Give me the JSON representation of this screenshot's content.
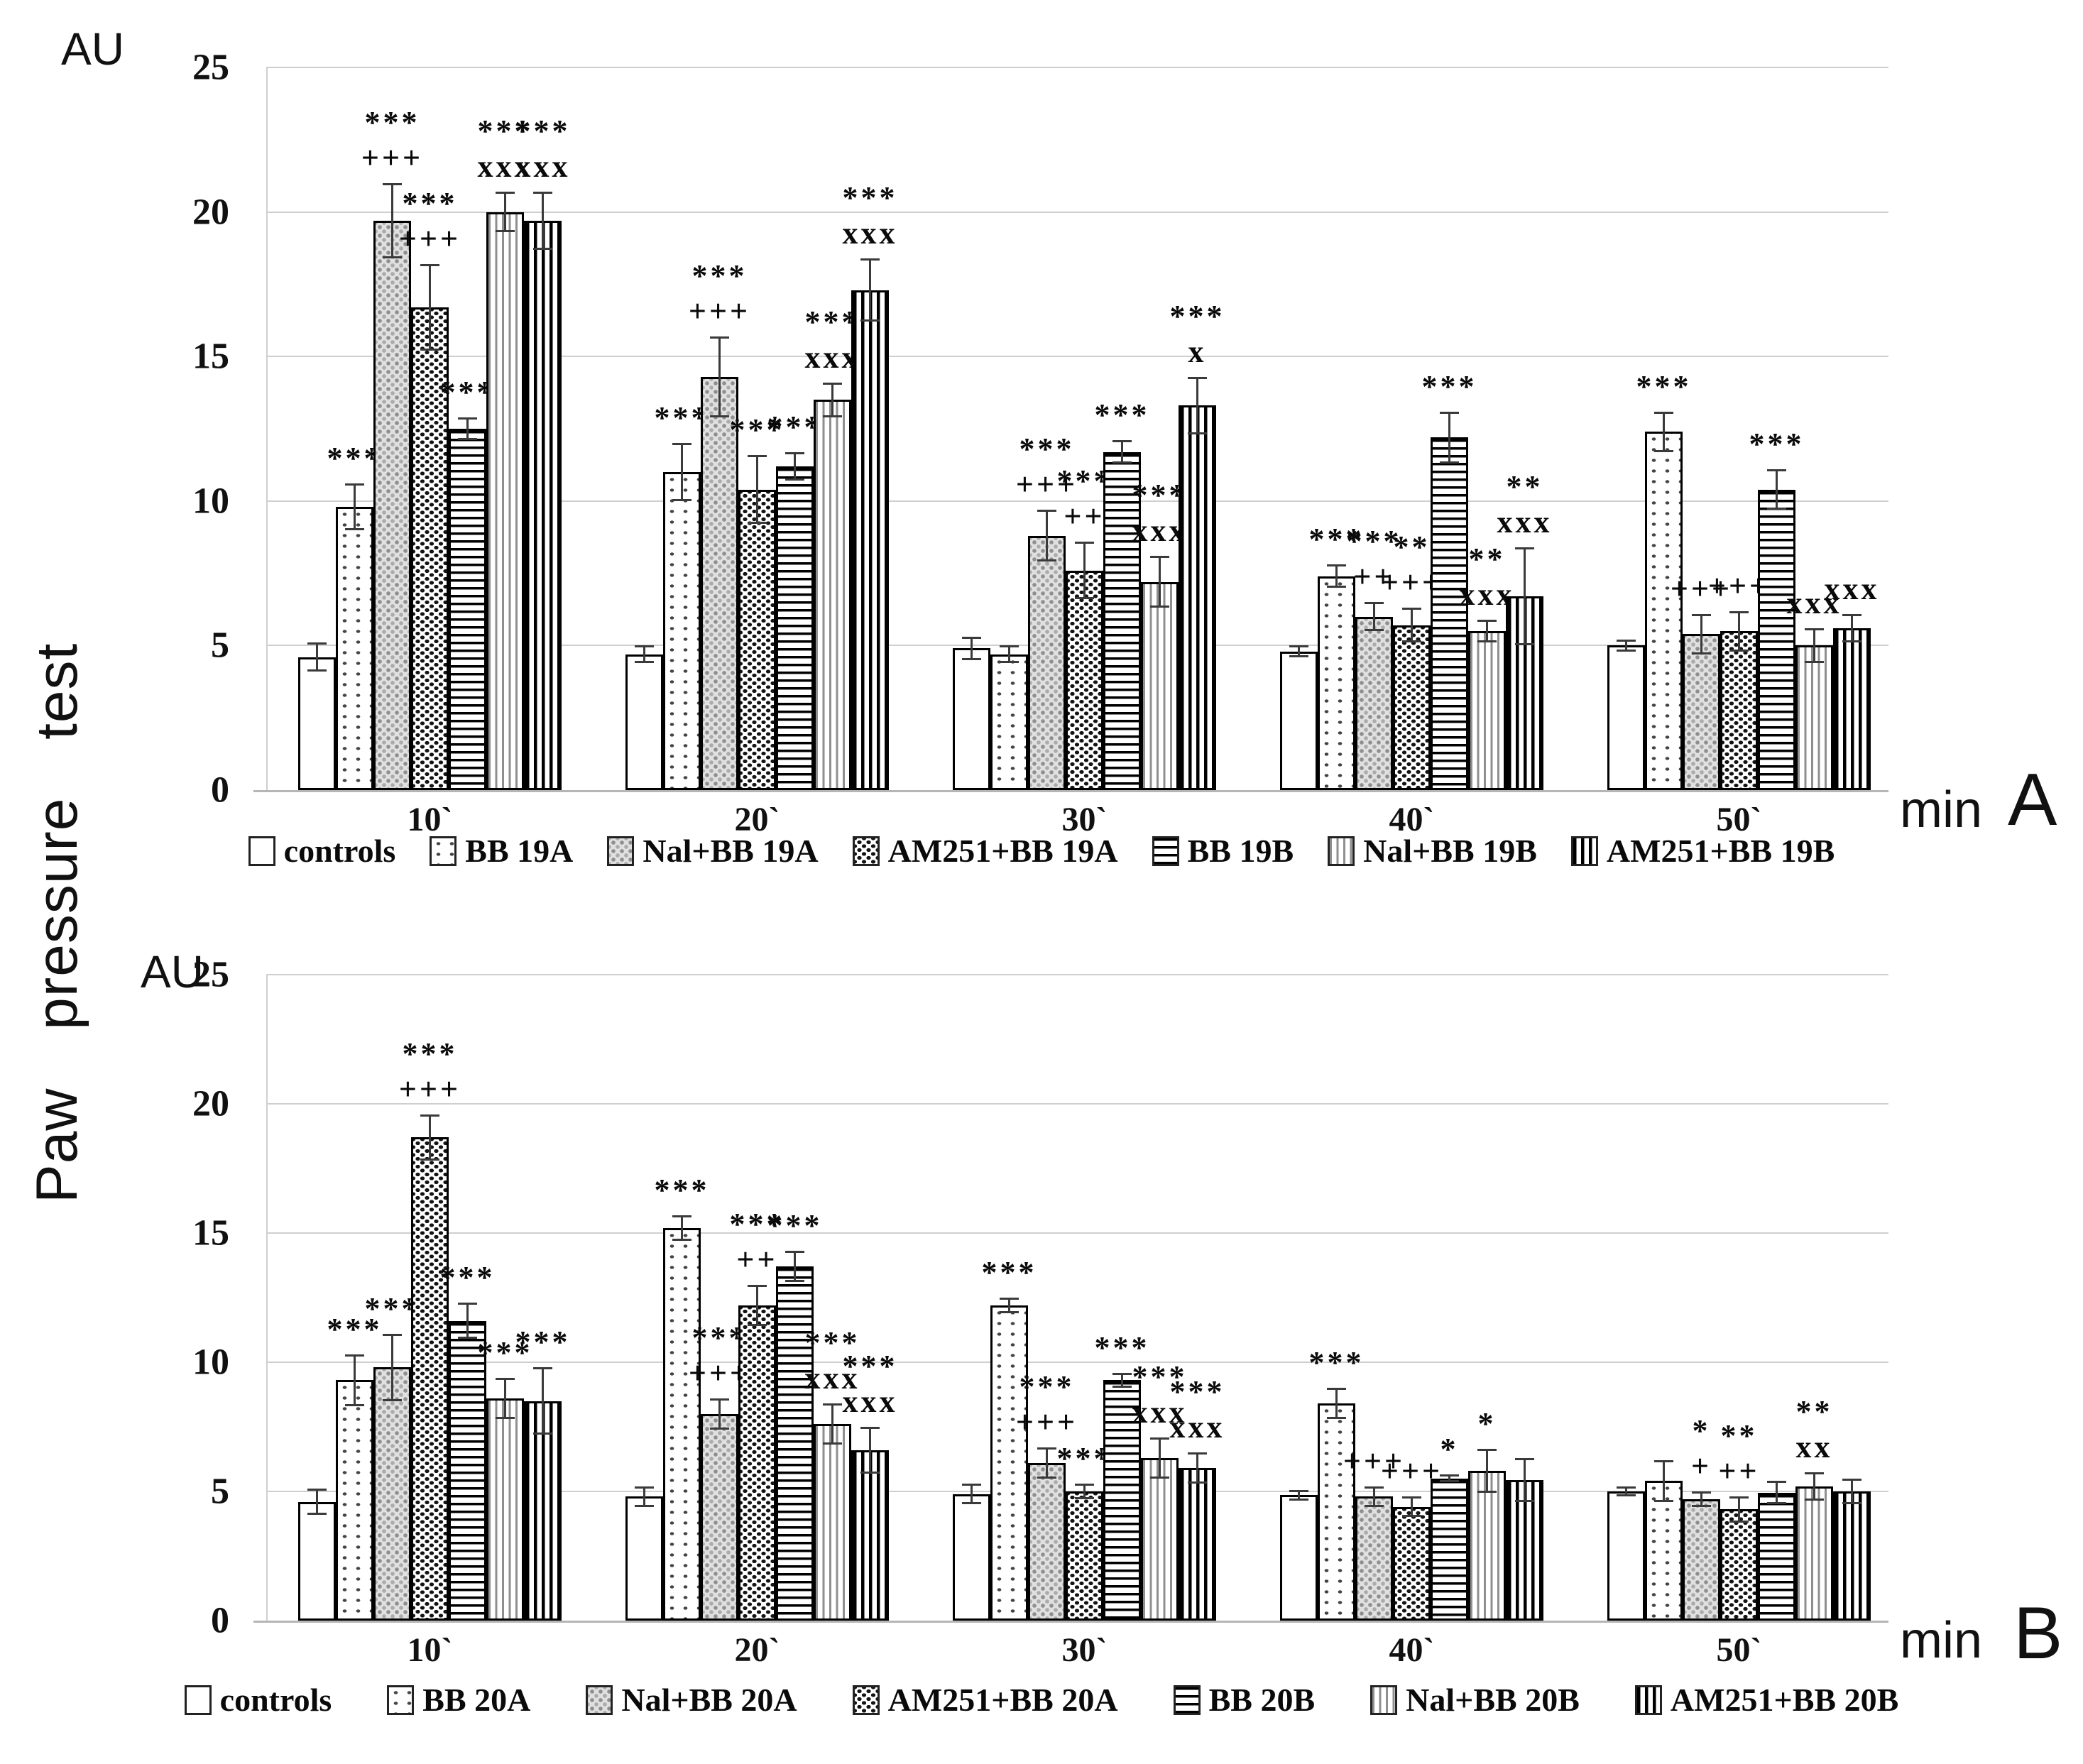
{
  "figure": {
    "vertical_axis_title": "Paw pressure test",
    "y_axis_unit": "AU",
    "x_axis_unit": "min"
  },
  "colors": {
    "ink": "#000000",
    "grid": "#cfcfcf",
    "axis_line": "#b5b5b5",
    "error_bar": "#3a3a3a",
    "background": "#ffffff"
  },
  "chart_data": [
    {
      "type": "bar",
      "panel_label": "A",
      "y_axis_unit": "AU",
      "x_axis_unit": "min",
      "ylim": [
        0,
        25
      ],
      "yticks": [
        25,
        20,
        15,
        10,
        5,
        0
      ],
      "grid": "horizontal",
      "legend_position": "bottom",
      "categories": [
        "10`",
        "20`",
        "30`",
        "40`",
        "50`"
      ],
      "series": [
        {
          "name": "controls",
          "pattern": "plain",
          "values": [
            4.6,
            4.7,
            4.9,
            4.8,
            5.0
          ],
          "errors": [
            0.5,
            0.3,
            0.4,
            0.2,
            0.2
          ],
          "annotations": [
            [],
            [],
            [],
            [],
            []
          ]
        },
        {
          "name": "BB 19A",
          "pattern": "dots",
          "values": [
            9.8,
            11.0,
            4.7,
            7.4,
            12.4
          ],
          "errors": [
            0.8,
            1.0,
            0.3,
            0.4,
            0.7
          ],
          "annotations": [
            [
              "***"
            ],
            [
              "***"
            ],
            [],
            [
              "***"
            ],
            [
              "***"
            ]
          ]
        },
        {
          "name": "Nal+BB 19A",
          "pattern": "gray-dots",
          "values": [
            19.7,
            14.3,
            8.8,
            6.0,
            5.4
          ],
          "errors": [
            1.3,
            1.4,
            0.9,
            0.5,
            0.7
          ],
          "annotations": [
            [
              "***",
              "+++"
            ],
            [
              "***",
              "+++"
            ],
            [
              "***",
              "+++"
            ],
            [
              "***",
              "++"
            ],
            [
              "+++"
            ]
          ]
        },
        {
          "name": "AM251+BB 19A",
          "pattern": "speckle",
          "values": [
            16.7,
            10.4,
            7.6,
            5.7,
            5.5
          ],
          "errors": [
            1.5,
            1.2,
            1.0,
            0.6,
            0.7
          ],
          "annotations": [
            [
              "***",
              "+++"
            ],
            [
              "***"
            ],
            [
              "***",
              "++"
            ],
            [
              "**",
              "+++"
            ],
            [
              "+++"
            ]
          ]
        },
        {
          "name": "BB 19B",
          "pattern": "hlines",
          "values": [
            12.5,
            11.2,
            11.7,
            12.2,
            10.4
          ],
          "errors": [
            0.4,
            0.5,
            0.4,
            0.9,
            0.7
          ],
          "annotations": [
            [
              "***"
            ],
            [
              "***"
            ],
            [
              "***"
            ],
            [
              "***"
            ],
            [
              "***"
            ]
          ]
        },
        {
          "name": "Nal+BB 19B",
          "pattern": "vlines-gray",
          "values": [
            20.0,
            13.5,
            7.2,
            5.5,
            5.0
          ],
          "errors": [
            0.7,
            0.6,
            0.9,
            0.4,
            0.6
          ],
          "annotations": [
            [
              "***",
              "xxx"
            ],
            [
              "***",
              "xxx"
            ],
            [
              "***",
              "xxx"
            ],
            [
              "**",
              "xxx"
            ],
            [
              "xxx"
            ]
          ]
        },
        {
          "name": "AM251+BB 19B",
          "pattern": "vlines-black",
          "values": [
            19.7,
            17.3,
            13.3,
            6.7,
            5.6
          ],
          "errors": [
            1.0,
            1.1,
            1.0,
            1.7,
            0.5
          ],
          "annotations": [
            [
              "***",
              "xxx"
            ],
            [
              "***",
              "xxx"
            ],
            [
              "***",
              "x"
            ],
            [
              "**",
              "xxx"
            ],
            [
              "xxx"
            ]
          ]
        }
      ]
    },
    {
      "type": "bar",
      "panel_label": "B",
      "y_axis_unit": "AU",
      "x_axis_unit": "min",
      "ylim": [
        0,
        25
      ],
      "yticks": [
        25,
        20,
        15,
        10,
        5,
        0
      ],
      "grid": "horizontal",
      "legend_position": "bottom",
      "categories": [
        "10`",
        "20`",
        "30`",
        "40`",
        "50`"
      ],
      "series": [
        {
          "name": "controls",
          "pattern": "plain",
          "values": [
            4.6,
            4.8,
            4.9,
            4.85,
            5.0
          ],
          "errors": [
            0.5,
            0.4,
            0.4,
            0.2,
            0.2
          ],
          "annotations": [
            [],
            [],
            [],
            [],
            []
          ]
        },
        {
          "name": "BB 20A",
          "pattern": "dots",
          "values": [
            9.3,
            15.2,
            12.2,
            8.4,
            5.4
          ],
          "errors": [
            1.0,
            0.5,
            0.3,
            0.6,
            0.8
          ],
          "annotations": [
            [
              "***"
            ],
            [
              "***"
            ],
            [
              "***"
            ],
            [
              "***"
            ],
            []
          ]
        },
        {
          "name": "Nal+BB 20A",
          "pattern": "gray-dots",
          "values": [
            9.8,
            8.0,
            6.1,
            4.8,
            4.7
          ],
          "errors": [
            1.3,
            0.6,
            0.6,
            0.4,
            0.3
          ],
          "annotations": [
            [
              "***"
            ],
            [
              "***",
              "+++"
            ],
            [
              "***",
              "+++"
            ],
            [
              "+++"
            ],
            [
              "*",
              "+"
            ]
          ]
        },
        {
          "name": "AM251+BB 20A",
          "pattern": "speckle",
          "values": [
            18.7,
            12.2,
            5.0,
            4.4,
            4.3
          ],
          "errors": [
            0.9,
            0.8,
            0.3,
            0.4,
            0.5
          ],
          "annotations": [
            [
              "***",
              "+++"
            ],
            [
              "***",
              "++"
            ],
            [
              "***"
            ],
            [
              "+++"
            ],
            [
              "**",
              "++"
            ]
          ]
        },
        {
          "name": "BB 20B",
          "pattern": "hlines",
          "values": [
            11.6,
            13.7,
            9.3,
            5.5,
            4.95
          ],
          "errors": [
            0.7,
            0.6,
            0.3,
            0.15,
            0.45
          ],
          "annotations": [
            [
              "***"
            ],
            [
              "***"
            ],
            [
              "***"
            ],
            [
              "*"
            ],
            []
          ]
        },
        {
          "name": "Nal+BB 20B",
          "pattern": "vlines-gray",
          "values": [
            8.6,
            7.6,
            6.3,
            5.8,
            5.2
          ],
          "errors": [
            0.8,
            0.8,
            0.8,
            0.85,
            0.55
          ],
          "annotations": [
            [
              "***"
            ],
            [
              "***",
              "xxx"
            ],
            [
              "***",
              "xxx"
            ],
            [
              "*"
            ],
            [
              "**",
              "xx"
            ]
          ]
        },
        {
          "name": "AM251+BB 20B",
          "pattern": "vlines-black",
          "values": [
            8.5,
            6.6,
            5.9,
            5.45,
            5.0
          ],
          "errors": [
            1.3,
            0.9,
            0.6,
            0.85,
            0.5
          ],
          "annotations": [
            [
              "***"
            ],
            [
              "***",
              "xxx"
            ],
            [
              "***",
              "xxx"
            ],
            [],
            []
          ]
        }
      ]
    }
  ]
}
